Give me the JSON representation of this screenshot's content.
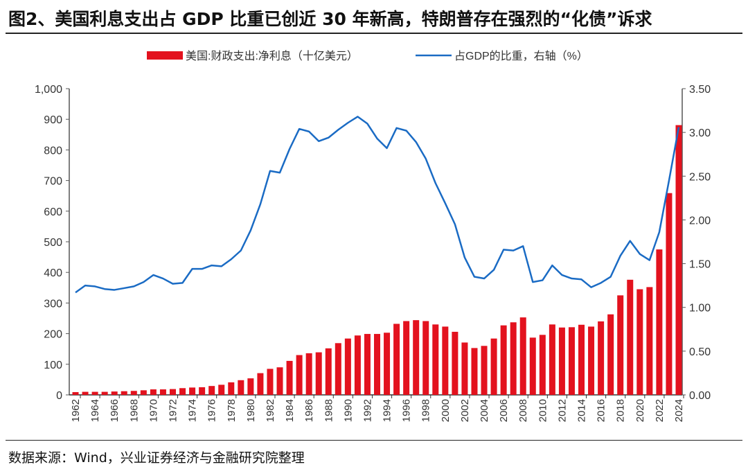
{
  "title": "图2、美国利息支出占 GDP 比重已创近 30 年新高，特朗普存在强烈的“化债”诉求",
  "source": "数据来源：Wind，兴业证券经济与金融研究院整理",
  "chart_data": {
    "type": "bar+line",
    "title": "",
    "legend_position": "top",
    "grid": false,
    "x": [
      1962,
      1963,
      1964,
      1965,
      1966,
      1967,
      1968,
      1969,
      1970,
      1971,
      1972,
      1973,
      1974,
      1975,
      1976,
      1977,
      1978,
      1979,
      1980,
      1981,
      1982,
      1983,
      1984,
      1985,
      1986,
      1987,
      1988,
      1989,
      1990,
      1991,
      1992,
      1993,
      1994,
      1995,
      1996,
      1997,
      1998,
      1999,
      2000,
      2001,
      2002,
      2003,
      2004,
      2005,
      2006,
      2007,
      2008,
      2009,
      2010,
      2011,
      2012,
      2013,
      2014,
      2015,
      2016,
      2017,
      2018,
      2019,
      2020,
      2021,
      2022,
      2023,
      2024
    ],
    "x_tick_labels": [
      "1962",
      "1964",
      "1966",
      "1968",
      "1970",
      "1972",
      "1974",
      "1976",
      "1978",
      "1980",
      "1982",
      "1984",
      "1986",
      "1988",
      "1990",
      "1992",
      "1994",
      "1996",
      "1998",
      "2000",
      "2002",
      "2004",
      "2006",
      "2008",
      "2010",
      "2012",
      "2014",
      "2016",
      "2018",
      "2020",
      "2022",
      "2024"
    ],
    "y_left": {
      "lim": [
        0,
        1000
      ],
      "ticks": [
        "0",
        "100",
        "200",
        "300",
        "400",
        "500",
        "600",
        "700",
        "800",
        "900",
        "1,000"
      ]
    },
    "y_right": {
      "lim": [
        0,
        3.5
      ],
      "ticks": [
        "0.00",
        "0.50",
        "1.00",
        "1.50",
        "2.00",
        "2.50",
        "3.00",
        "3.50"
      ]
    },
    "series": [
      {
        "name": "美国:财政支出:净利息（十亿美元）",
        "type": "bar",
        "axis": "left",
        "color": "#e3121e",
        "values": [
          9,
          10,
          10,
          10,
          11,
          12,
          13,
          15,
          18,
          18,
          19,
          22,
          24,
          25,
          29,
          33,
          41,
          48,
          54,
          71,
          85,
          90,
          111,
          130,
          136,
          139,
          152,
          169,
          184,
          194,
          199,
          199,
          203,
          232,
          241,
          244,
          241,
          230,
          223,
          206,
          171,
          153,
          160,
          184,
          227,
          237,
          253,
          187,
          196,
          230,
          220,
          221,
          229,
          223,
          240,
          263,
          325,
          376,
          345,
          352,
          475,
          659,
          881
        ]
      },
      {
        "name": "占GDP的比重，右轴（%）",
        "type": "line",
        "axis": "right",
        "color": "#1a6bc4",
        "values": [
          1.17,
          1.25,
          1.24,
          1.21,
          1.2,
          1.22,
          1.24,
          1.29,
          1.37,
          1.33,
          1.27,
          1.28,
          1.44,
          1.44,
          1.48,
          1.47,
          1.55,
          1.65,
          1.88,
          2.18,
          2.56,
          2.54,
          2.81,
          3.04,
          3.01,
          2.9,
          2.94,
          3.03,
          3.11,
          3.18,
          3.1,
          2.93,
          2.82,
          3.05,
          3.02,
          2.89,
          2.7,
          2.42,
          2.19,
          1.95,
          1.57,
          1.35,
          1.33,
          1.43,
          1.66,
          1.65,
          1.7,
          1.29,
          1.31,
          1.48,
          1.37,
          1.33,
          1.32,
          1.23,
          1.28,
          1.35,
          1.59,
          1.76,
          1.61,
          1.54,
          1.86,
          2.45,
          3.06
        ]
      }
    ]
  }
}
